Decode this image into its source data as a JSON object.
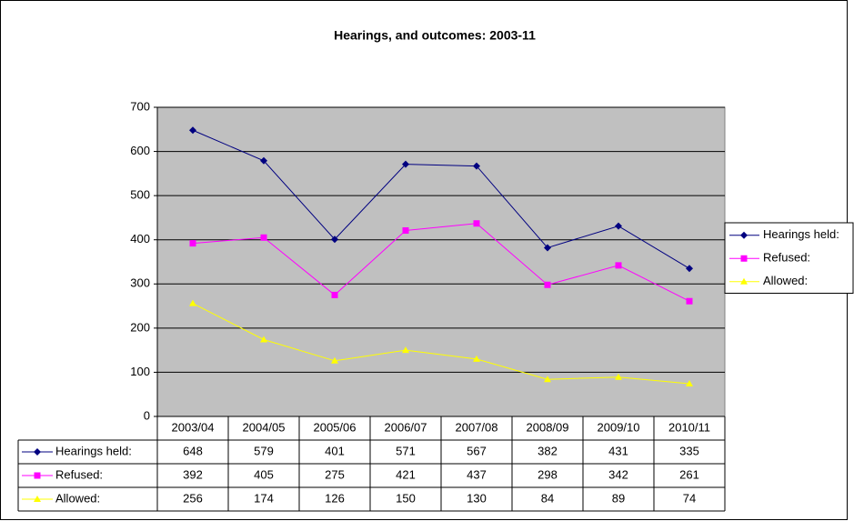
{
  "chart_data": {
    "type": "line",
    "title": "Hearings, and outcomes: 2003-11",
    "categories": [
      "2003/04",
      "2004/05",
      "2005/06",
      "2006/07",
      "2007/08",
      "2008/09",
      "2009/10",
      "2010/11"
    ],
    "series": [
      {
        "name": "Hearings held:",
        "color": "#000080",
        "marker": "diamond",
        "values": [
          648,
          579,
          401,
          571,
          567,
          382,
          431,
          335
        ]
      },
      {
        "name": "Refused:",
        "color": "#ff00ff",
        "marker": "square",
        "values": [
          392,
          405,
          275,
          421,
          437,
          298,
          342,
          261
        ]
      },
      {
        "name": "Allowed:",
        "color": "#ffff00",
        "marker": "triangle",
        "values": [
          256,
          174,
          126,
          150,
          130,
          84,
          89,
          74
        ]
      }
    ],
    "ylim": [
      0,
      700
    ],
    "yticks": [
      0,
      100,
      200,
      300,
      400,
      500,
      600,
      700
    ],
    "grid": true,
    "legend": "right",
    "plot_background": "#c0c0c0"
  }
}
